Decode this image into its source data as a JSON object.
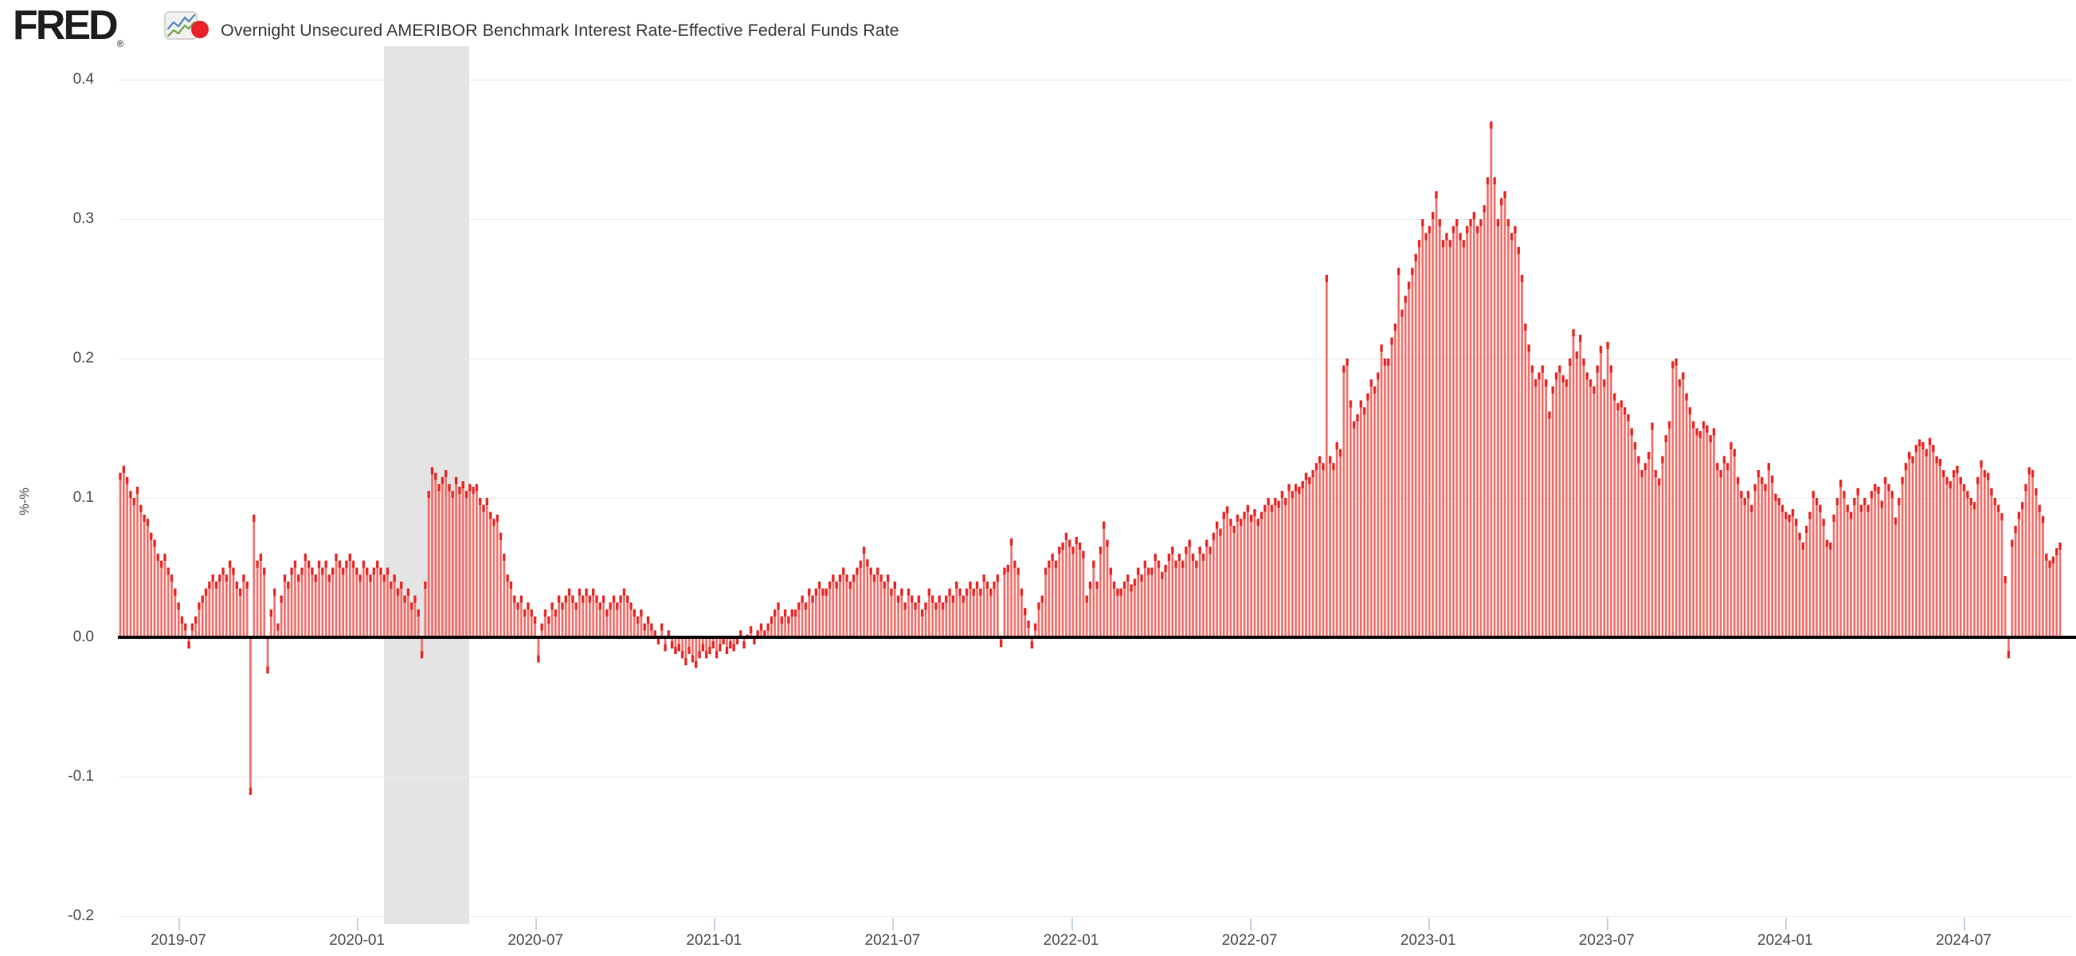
{
  "header": {
    "logo_text": "FRED",
    "registered_mark": "®",
    "title": "Overnight Unsecured AMERIBOR Benchmark Interest Rate-Effective Federal Funds Rate"
  },
  "y_axis": {
    "unit_label": "%-%",
    "ticks": [
      "0.4",
      "0.3",
      "0.2",
      "0.1",
      "0.0",
      "-0.1",
      "-0.2"
    ]
  },
  "x_axis": {
    "ticks": [
      "2019-07",
      "2020-01",
      "2020-07",
      "2021-01",
      "2021-07",
      "2022-01",
      "2022-07",
      "2023-01",
      "2023-07",
      "2024-01",
      "2024-07"
    ]
  },
  "colors": {
    "bar_body": "#f1716c",
    "bar_cap": "#e62a28",
    "legend_dot": "#e8212b",
    "recession_band": "#e4e4e4",
    "gridline": "#eaeaea",
    "zero_line": "#000000",
    "tick_mark": "#c6d3e2",
    "axis_text": "#4c4c4c",
    "title_text": "#3a3a3a",
    "logo_text": "#1e1e1e",
    "glyph_blue": "#5b8cb8",
    "glyph_green": "#7aa854"
  },
  "chart_data": {
    "type": "bar",
    "title": "Overnight Unsecured AMERIBOR Benchmark Interest Rate-Effective Federal Funds Rate",
    "xlabel": "",
    "ylabel": "%-%",
    "ylim": [
      -0.2,
      0.4
    ],
    "grid": true,
    "legend_position": "top-left",
    "x_start": "2019-05-03",
    "x_step_days": 3.5,
    "x_tick_labels": [
      "2019-07",
      "2020-01",
      "2020-07",
      "2021-01",
      "2021-07",
      "2022-01",
      "2022-07",
      "2023-01",
      "2023-07",
      "2024-01",
      "2024-07"
    ],
    "recession_band": {
      "from": "2020-02",
      "to": "2020-04"
    },
    "notable_points": {
      "2019-09 repo spike low": -0.113,
      "2020-03 covid spike high": 0.122,
      "2023-03 peak": 0.37,
      "2024-08 dip": -0.015
    },
    "values": [
      0.118,
      0.123,
      0.115,
      0.105,
      0.1,
      0.108,
      0.095,
      0.088,
      0.085,
      0.075,
      0.07,
      0.06,
      0.055,
      0.06,
      0.05,
      0.045,
      0.035,
      0.025,
      0.015,
      0.01,
      -0.008,
      0.01,
      0.015,
      0.025,
      0.03,
      0.035,
      0.04,
      0.045,
      0.04,
      0.045,
      0.05,
      0.045,
      0.055,
      0.05,
      0.04,
      0.035,
      0.045,
      0.04,
      -0.113,
      0.088,
      0.055,
      0.06,
      0.05,
      -0.026,
      0.02,
      0.035,
      0.01,
      0.03,
      0.045,
      0.04,
      0.05,
      0.055,
      0.045,
      0.05,
      0.06,
      0.055,
      0.05,
      0.045,
      0.055,
      0.05,
      0.055,
      0.045,
      0.05,
      0.06,
      0.055,
      0.05,
      0.055,
      0.06,
      0.055,
      0.05,
      0.045,
      0.055,
      0.05,
      0.045,
      0.05,
      0.055,
      0.05,
      0.045,
      0.05,
      0.04,
      0.045,
      0.035,
      0.04,
      0.03,
      0.035,
      0.025,
      0.03,
      0.02,
      -0.015,
      0.04,
      0.105,
      0.122,
      0.118,
      0.11,
      0.115,
      0.12,
      0.11,
      0.105,
      0.115,
      0.108,
      0.112,
      0.105,
      0.11,
      0.108,
      0.11,
      0.1,
      0.095,
      0.1,
      0.09,
      0.085,
      0.088,
      0.075,
      0.06,
      0.045,
      0.04,
      0.03,
      0.025,
      0.03,
      0.02,
      0.025,
      0.02,
      0.015,
      -0.018,
      0.01,
      0.02,
      0.015,
      0.025,
      0.02,
      0.03,
      0.025,
      0.03,
      0.035,
      0.03,
      0.025,
      0.035,
      0.03,
      0.035,
      0.03,
      0.035,
      0.03,
      0.025,
      0.03,
      0.02,
      0.025,
      0.03,
      0.025,
      0.03,
      0.035,
      0.03,
      0.025,
      0.02,
      0.015,
      0.02,
      0.01,
      0.015,
      0.01,
      0.005,
      -0.005,
      0.01,
      -0.01,
      0.005,
      -0.008,
      -0.012,
      -0.01,
      -0.015,
      -0.02,
      -0.012,
      -0.018,
      -0.022,
      -0.015,
      -0.01,
      -0.015,
      -0.012,
      -0.008,
      -0.015,
      -0.01,
      -0.005,
      -0.012,
      -0.008,
      -0.01,
      -0.005,
      0.005,
      -0.008,
      0.002,
      0.008,
      -0.005,
      0.005,
      0.01,
      0.005,
      0.01,
      0.015,
      0.02,
      0.025,
      0.015,
      0.02,
      0.015,
      0.02,
      0.02,
      0.025,
      0.03,
      0.025,
      0.035,
      0.03,
      0.035,
      0.04,
      0.035,
      0.035,
      0.04,
      0.045,
      0.04,
      0.045,
      0.05,
      0.045,
      0.04,
      0.045,
      0.05,
      0.055,
      0.065,
      0.056,
      0.05,
      0.045,
      0.05,
      0.045,
      0.04,
      0.045,
      0.035,
      0.04,
      0.03,
      0.035,
      0.025,
      0.035,
      0.03,
      0.025,
      0.03,
      0.02,
      0.025,
      0.035,
      0.03,
      0.025,
      0.03,
      0.025,
      0.03,
      0.035,
      0.03,
      0.04,
      0.035,
      0.03,
      0.035,
      0.04,
      0.035,
      0.04,
      0.035,
      0.045,
      0.04,
      0.035,
      0.04,
      0.045,
      -0.007,
      0.05,
      0.052,
      0.071,
      0.055,
      0.05,
      0.035,
      0.021,
      0.012,
      -0.008,
      0.01,
      0.025,
      0.03,
      0.05,
      0.055,
      0.06,
      0.055,
      0.065,
      0.068,
      0.075,
      0.07,
      0.065,
      0.072,
      0.068,
      0.062,
      0.03,
      0.04,
      0.055,
      0.04,
      0.065,
      0.083,
      0.07,
      0.05,
      0.04,
      0.035,
      0.035,
      0.04,
      0.045,
      0.038,
      0.042,
      0.05,
      0.045,
      0.055,
      0.05,
      0.05,
      0.06,
      0.055,
      0.047,
      0.052,
      0.06,
      0.065,
      0.055,
      0.06,
      0.055,
      0.065,
      0.07,
      0.06,
      0.055,
      0.065,
      0.06,
      0.07,
      0.065,
      0.075,
      0.083,
      0.078,
      0.09,
      0.094,
      0.085,
      0.08,
      0.088,
      0.085,
      0.09,
      0.095,
      0.088,
      0.092,
      0.085,
      0.09,
      0.095,
      0.1,
      0.095,
      0.1,
      0.098,
      0.105,
      0.1,
      0.11,
      0.105,
      0.11,
      0.108,
      0.112,
      0.118,
      0.115,
      0.12,
      0.125,
      0.13,
      0.125,
      0.26,
      0.13,
      0.125,
      0.14,
      0.135,
      0.195,
      0.2,
      0.17,
      0.155,
      0.16,
      0.17,
      0.165,
      0.175,
      0.185,
      0.18,
      0.19,
      0.21,
      0.2,
      0.2,
      0.215,
      0.225,
      0.265,
      0.235,
      0.245,
      0.255,
      0.265,
      0.275,
      0.285,
      0.3,
      0.29,
      0.295,
      0.305,
      0.32,
      0.3,
      0.285,
      0.29,
      0.285,
      0.295,
      0.3,
      0.29,
      0.285,
      0.295,
      0.3,
      0.305,
      0.295,
      0.3,
      0.31,
      0.33,
      0.37,
      0.33,
      0.3,
      0.315,
      0.32,
      0.3,
      0.29,
      0.295,
      0.28,
      0.26,
      0.225,
      0.21,
      0.195,
      0.185,
      0.19,
      0.195,
      0.185,
      0.162,
      0.18,
      0.19,
      0.195,
      0.188,
      0.185,
      0.2,
      0.221,
      0.205,
      0.217,
      0.2,
      0.19,
      0.185,
      0.18,
      0.195,
      0.209,
      0.185,
      0.212,
      0.195,
      0.175,
      0.168,
      0.17,
      0.165,
      0.16,
      0.15,
      0.14,
      0.13,
      0.12,
      0.125,
      0.133,
      0.154,
      0.12,
      0.114,
      0.13,
      0.145,
      0.155,
      0.198,
      0.2,
      0.185,
      0.19,
      0.175,
      0.165,
      0.155,
      0.15,
      0.148,
      0.155,
      0.152,
      0.145,
      0.15,
      0.125,
      0.12,
      0.13,
      0.125,
      0.14,
      0.135,
      0.115,
      0.105,
      0.1,
      0.105,
      0.095,
      0.11,
      0.12,
      0.115,
      0.11,
      0.125,
      0.116,
      0.103,
      0.1,
      0.095,
      0.09,
      0.088,
      0.092,
      0.085,
      0.075,
      0.068,
      0.08,
      0.09,
      0.105,
      0.1,
      0.095,
      0.085,
      0.07,
      0.068,
      0.088,
      0.1,
      0.113,
      0.105,
      0.095,
      0.09,
      0.1,
      0.107,
      0.095,
      0.1,
      0.095,
      0.105,
      0.11,
      0.108,
      0.098,
      0.115,
      0.11,
      0.105,
      0.086,
      0.1,
      0.115,
      0.125,
      0.133,
      0.13,
      0.138,
      0.142,
      0.14,
      0.135,
      0.143,
      0.138,
      0.13,
      0.128,
      0.12,
      0.115,
      0.112,
      0.12,
      0.123,
      0.115,
      0.11,
      0.105,
      0.1,
      0.097,
      0.115,
      0.127,
      0.12,
      0.118,
      0.107,
      0.1,
      0.095,
      0.089,
      0.044,
      -0.015,
      0.07,
      0.08,
      0.09,
      0.097,
      0.11,
      0.122,
      0.12,
      0.107,
      0.095,
      0.087,
      0.06,
      0.055,
      0.058,
      0.064,
      0.068
    ]
  }
}
